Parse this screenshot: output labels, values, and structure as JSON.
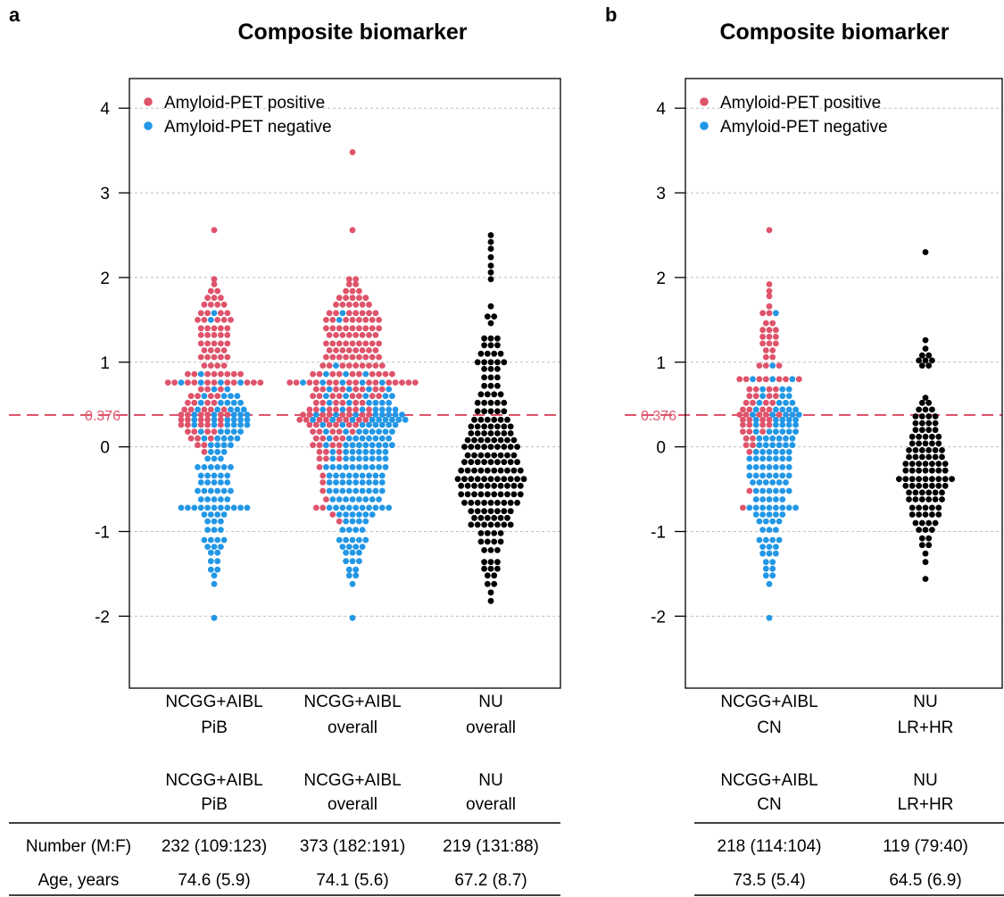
{
  "colors": {
    "positive": "#df536b",
    "negative": "#2297e6",
    "other": "#000000",
    "cutoff": "#df536b",
    "grid": "#bebebe"
  },
  "chart_data": [
    {
      "type": "scatter",
      "panel_label": "a",
      "title": "Composite biomarker",
      "ylim": [
        -2.85,
        4.35
      ],
      "yticks": [
        "-2",
        "-1",
        "0",
        "1",
        "2",
        "3",
        "4"
      ],
      "grid": true,
      "cutoff": {
        "value": 0.376,
        "label": "0.376"
      },
      "legend": {
        "placement": "top-left",
        "entries": [
          "Amyloid-PET positive",
          "Amyloid-PET negative"
        ]
      },
      "groups": [
        {
          "label_line1": "NCGG+AIBL",
          "label_line2": "PiB",
          "table_line1": "NCGG+AIBL",
          "table_line2": "PiB",
          "number": "232 (109:123)",
          "age": "74.6 (5.9)",
          "color": "mixed",
          "bins": [
            [
              -2.02,
              0,
              1
            ],
            [
              -1.62,
              0,
              1
            ],
            [
              -1.52,
              0,
              1
            ],
            [
              -1.45,
              0,
              2
            ],
            [
              -1.35,
              0,
              2
            ],
            [
              -1.25,
              0,
              2
            ],
            [
              -1.18,
              0,
              3
            ],
            [
              -1.1,
              0,
              4
            ],
            [
              -0.98,
              0,
              3
            ],
            [
              -0.88,
              0,
              3
            ],
            [
              -0.8,
              0,
              4
            ],
            [
              -0.72,
              0,
              11
            ],
            [
              -0.62,
              0,
              5
            ],
            [
              -0.52,
              0,
              6
            ],
            [
              -0.42,
              0,
              5
            ],
            [
              -0.34,
              0,
              5
            ],
            [
              -0.24,
              0,
              6
            ],
            [
              -0.14,
              0,
              3
            ],
            [
              -0.06,
              1,
              3
            ],
            [
              0.02,
              2,
              4
            ],
            [
              0.1,
              3,
              5
            ],
            [
              0.18,
              4,
              5
            ],
            [
              0.26,
              5,
              6
            ],
            [
              0.32,
              5,
              6
            ],
            [
              0.38,
              6,
              5
            ],
            [
              0.44,
              5,
              5
            ],
            [
              0.52,
              4,
              5
            ],
            [
              0.6,
              4,
              4
            ],
            [
              0.68,
              3,
              2
            ],
            [
              0.76,
              11,
              4
            ],
            [
              0.86,
              8,
              1
            ],
            [
              0.96,
              4,
              0
            ],
            [
              1.06,
              5,
              0
            ],
            [
              1.14,
              4,
              0
            ],
            [
              1.22,
              5,
              0
            ],
            [
              1.32,
              5,
              0
            ],
            [
              1.4,
              5,
              0
            ],
            [
              1.5,
              5,
              1
            ],
            [
              1.58,
              4,
              1
            ],
            [
              1.68,
              4,
              0
            ],
            [
              1.76,
              3,
              0
            ],
            [
              1.84,
              2,
              0
            ],
            [
              1.92,
              1,
              0
            ],
            [
              1.98,
              1,
              0
            ],
            [
              2.56,
              1,
              0
            ]
          ]
        },
        {
          "label_line1": "NCGG+AIBL",
          "label_line2": "overall",
          "table_line1": "NCGG+AIBL",
          "table_line2": "overall",
          "number": "373 (182:191)",
          "age": "74.1 (5.6)",
          "color": "mixed",
          "bins": [
            [
              -2.02,
              0,
              1
            ],
            [
              -1.62,
              0,
              1
            ],
            [
              -1.52,
              0,
              2
            ],
            [
              -1.45,
              0,
              2
            ],
            [
              -1.35,
              0,
              3
            ],
            [
              -1.25,
              0,
              3
            ],
            [
              -1.18,
              0,
              4
            ],
            [
              -1.1,
              0,
              5
            ],
            [
              -0.98,
              0,
              4
            ],
            [
              -0.88,
              1,
              4
            ],
            [
              -0.8,
              1,
              6
            ],
            [
              -0.72,
              2,
              10
            ],
            [
              -0.62,
              1,
              8
            ],
            [
              -0.52,
              1,
              9
            ],
            [
              -0.42,
              1,
              9
            ],
            [
              -0.34,
              1,
              9
            ],
            [
              -0.24,
              1,
              10
            ],
            [
              -0.14,
              3,
              8
            ],
            [
              -0.06,
              3,
              8
            ],
            [
              0.02,
              4,
              9
            ],
            [
              0.1,
              4,
              8
            ],
            [
              0.18,
              5,
              8
            ],
            [
              0.26,
              6,
              8
            ],
            [
              0.32,
              8,
              9
            ],
            [
              0.38,
              8,
              8
            ],
            [
              0.44,
              7,
              7
            ],
            [
              0.52,
              6,
              6
            ],
            [
              0.6,
              8,
              5
            ],
            [
              0.68,
              8,
              4
            ],
            [
              0.76,
              15,
              5
            ],
            [
              0.86,
              10,
              3
            ],
            [
              0.96,
              9,
              1
            ],
            [
              1.06,
              9,
              0
            ],
            [
              1.14,
              8,
              0
            ],
            [
              1.22,
              9,
              0
            ],
            [
              1.32,
              8,
              0
            ],
            [
              1.4,
              9,
              0
            ],
            [
              1.5,
              8,
              1
            ],
            [
              1.58,
              7,
              1
            ],
            [
              1.68,
              6,
              0
            ],
            [
              1.76,
              5,
              0
            ],
            [
              1.84,
              3,
              0
            ],
            [
              1.92,
              2,
              0
            ],
            [
              1.98,
              2,
              0
            ],
            [
              2.56,
              1,
              0
            ],
            [
              3.48,
              1,
              0
            ]
          ]
        },
        {
          "label_line1": "NU",
          "label_line2": "overall",
          "table_line1": "NU",
          "table_line2": "overall",
          "number": "219 (131:88)",
          "age": "67.2 (8.7)",
          "color": "other",
          "bins": [
            [
              -1.82,
              1,
              0
            ],
            [
              -1.72,
              1,
              0
            ],
            [
              -1.62,
              2,
              0
            ],
            [
              -1.52,
              2,
              0
            ],
            [
              -1.44,
              3,
              0
            ],
            [
              -1.36,
              3,
              0
            ],
            [
              -1.22,
              3,
              0
            ],
            [
              -1.12,
              4,
              0
            ],
            [
              -1.02,
              4,
              0
            ],
            [
              -0.92,
              7,
              0
            ],
            [
              -0.84,
              6,
              0
            ],
            [
              -0.76,
              7,
              0
            ],
            [
              -0.66,
              9,
              0
            ],
            [
              -0.56,
              10,
              0
            ],
            [
              -0.46,
              10,
              0
            ],
            [
              -0.38,
              11,
              0
            ],
            [
              -0.28,
              10,
              0
            ],
            [
              -0.18,
              9,
              0
            ],
            [
              -0.1,
              8,
              0
            ],
            [
              0.0,
              9,
              0
            ],
            [
              0.08,
              8,
              0
            ],
            [
              0.16,
              7,
              0
            ],
            [
              0.24,
              7,
              0
            ],
            [
              0.32,
              6,
              0
            ],
            [
              0.42,
              5,
              0
            ],
            [
              0.52,
              5,
              0
            ],
            [
              0.62,
              4,
              0
            ],
            [
              0.72,
              3,
              0
            ],
            [
              0.82,
              3,
              0
            ],
            [
              0.92,
              3,
              0
            ],
            [
              1.0,
              5,
              0
            ],
            [
              1.1,
              4,
              0
            ],
            [
              1.2,
              3,
              0
            ],
            [
              1.28,
              3,
              0
            ],
            [
              1.46,
              1,
              0
            ],
            [
              1.54,
              2,
              0
            ],
            [
              1.66,
              1,
              0
            ],
            [
              1.98,
              1,
              0
            ],
            [
              2.06,
              1,
              0
            ],
            [
              2.14,
              1,
              0
            ],
            [
              2.24,
              1,
              0
            ],
            [
              2.34,
              1,
              0
            ],
            [
              2.42,
              1,
              0
            ],
            [
              2.5,
              1,
              0
            ]
          ]
        }
      ]
    },
    {
      "type": "scatter",
      "panel_label": "b",
      "title": "Composite biomarker",
      "ylim": [
        -2.85,
        4.35
      ],
      "yticks": [
        "-2",
        "-1",
        "0",
        "1",
        "2",
        "3",
        "4"
      ],
      "grid": true,
      "cutoff": {
        "value": 0.376,
        "label": "0.376"
      },
      "legend": {
        "placement": "top-left",
        "entries": [
          "Amyloid-PET positive",
          "Amyloid-PET negative"
        ]
      },
      "groups": [
        {
          "label_line1": "NCGG+AIBL",
          "label_line2": "CN",
          "table_line1": "NCGG+AIBL",
          "table_line2": "CN",
          "number": "218 (114:104)",
          "age": "73.5 (5.4)",
          "color": "mixed",
          "bins": [
            [
              -2.02,
              0,
              1
            ],
            [
              -1.62,
              0,
              1
            ],
            [
              -1.52,
              0,
              2
            ],
            [
              -1.44,
              0,
              2
            ],
            [
              -1.36,
              0,
              2
            ],
            [
              -1.26,
              0,
              3
            ],
            [
              -1.18,
              0,
              3
            ],
            [
              -1.1,
              0,
              4
            ],
            [
              -0.98,
              0,
              3
            ],
            [
              -0.88,
              0,
              4
            ],
            [
              -0.8,
              0,
              5
            ],
            [
              -0.72,
              1,
              8
            ],
            [
              -0.62,
              0,
              5
            ],
            [
              -0.52,
              1,
              6
            ],
            [
              -0.42,
              0,
              6
            ],
            [
              -0.34,
              0,
              7
            ],
            [
              -0.24,
              0,
              7
            ],
            [
              -0.14,
              0,
              7
            ],
            [
              -0.06,
              1,
              6
            ],
            [
              0.02,
              2,
              6
            ],
            [
              0.1,
              2,
              6
            ],
            [
              0.18,
              3,
              6
            ],
            [
              0.26,
              4,
              5
            ],
            [
              0.32,
              4,
              5
            ],
            [
              0.38,
              5,
              5
            ],
            [
              0.44,
              4,
              5
            ],
            [
              0.52,
              4,
              4
            ],
            [
              0.6,
              4,
              3
            ],
            [
              0.68,
              4,
              3
            ],
            [
              0.8,
              7,
              3
            ],
            [
              0.96,
              3,
              1
            ],
            [
              1.06,
              2,
              0
            ],
            [
              1.14,
              2,
              0
            ],
            [
              1.22,
              3,
              0
            ],
            [
              1.3,
              3,
              0
            ],
            [
              1.38,
              3,
              0
            ],
            [
              1.46,
              2,
              0
            ],
            [
              1.58,
              2,
              1
            ],
            [
              1.66,
              1,
              0
            ],
            [
              1.78,
              1,
              0
            ],
            [
              1.84,
              1,
              0
            ],
            [
              1.92,
              1,
              0
            ],
            [
              2.56,
              1,
              0
            ]
          ]
        },
        {
          "label_line1": "NU",
          "label_line2": "LR+HR",
          "table_line1": "NU",
          "table_line2": "LR+HR",
          "number": "119 (79:40)",
          "age": "64.5 (6.9)",
          "color": "other",
          "bins": [
            [
              -1.56,
              1,
              0
            ],
            [
              -1.36,
              1,
              0
            ],
            [
              -1.26,
              1,
              0
            ],
            [
              -1.16,
              2,
              0
            ],
            [
              -1.08,
              2,
              0
            ],
            [
              -0.98,
              3,
              0
            ],
            [
              -0.9,
              4,
              0
            ],
            [
              -0.8,
              5,
              0
            ],
            [
              -0.72,
              5,
              0
            ],
            [
              -0.62,
              6,
              0
            ],
            [
              -0.54,
              6,
              0
            ],
            [
              -0.46,
              7,
              0
            ],
            [
              -0.38,
              9,
              0
            ],
            [
              -0.28,
              7,
              0
            ],
            [
              -0.2,
              7,
              0
            ],
            [
              -0.12,
              6,
              0
            ],
            [
              -0.04,
              6,
              0
            ],
            [
              0.04,
              5,
              0
            ],
            [
              0.12,
              5,
              0
            ],
            [
              0.2,
              4,
              0
            ],
            [
              0.28,
              4,
              0
            ],
            [
              0.36,
              4,
              0
            ],
            [
              0.44,
              3,
              0
            ],
            [
              0.52,
              2,
              0
            ],
            [
              0.58,
              1,
              0
            ],
            [
              0.96,
              2,
              0
            ],
            [
              1.02,
              3,
              0
            ],
            [
              1.08,
              2,
              0
            ],
            [
              1.16,
              1,
              0
            ],
            [
              1.26,
              1,
              0
            ],
            [
              2.3,
              1,
              0
            ]
          ]
        }
      ]
    }
  ],
  "table": {
    "row_labels": [
      "Number (M:F)",
      "Age, years"
    ]
  }
}
